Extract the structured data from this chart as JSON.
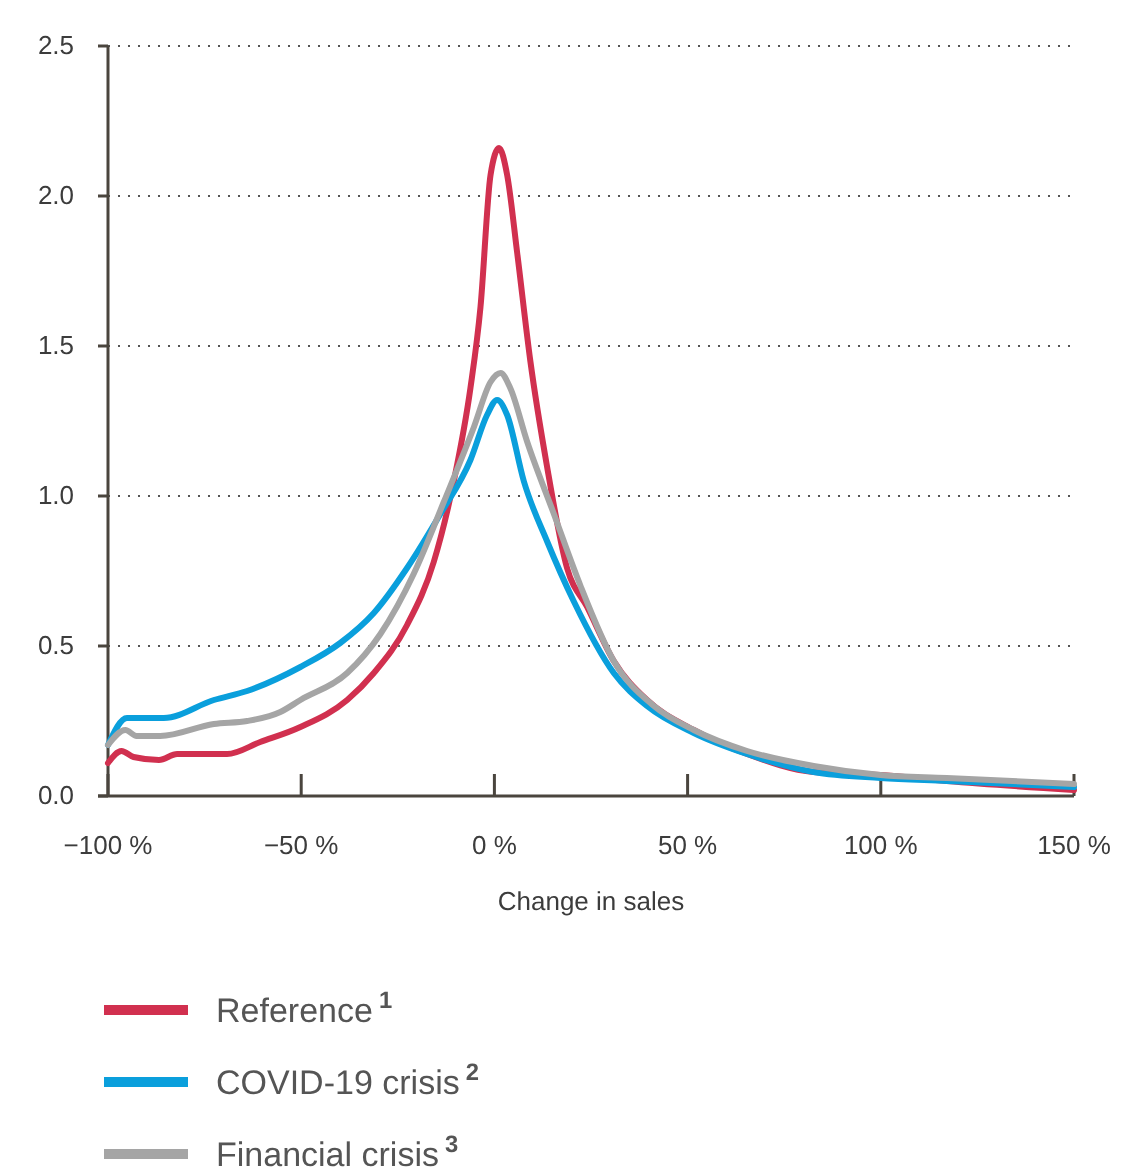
{
  "chart_data": {
    "type": "line",
    "xlabel": "Change in sales",
    "xlim": [
      -100,
      150
    ],
    "ylim": [
      0,
      2.5
    ],
    "xticks": [
      {
        "value": -100,
        "label": "−100 %"
      },
      {
        "value": -50,
        "label": "−50 %"
      },
      {
        "value": 0,
        "label": "0 %"
      },
      {
        "value": 50,
        "label": "50 %"
      },
      {
        "value": 100,
        "label": "100 %"
      },
      {
        "value": 150,
        "label": "150 %"
      }
    ],
    "yticks": [
      {
        "value": 0,
        "label": "0.0"
      },
      {
        "value": 0.5,
        "label": "0.5"
      },
      {
        "value": 1,
        "label": "1.0"
      },
      {
        "value": 1.5,
        "label": "1.5"
      },
      {
        "value": 2,
        "label": "2.0"
      },
      {
        "value": 2.5,
        "label": "2.5"
      }
    ],
    "grid": "y",
    "legend": "bottom",
    "marker": "none",
    "line_style": "solid",
    "series": [
      {
        "name": "Reference$^{1}$",
        "color": "#d1304f",
        "x": [
          -100,
          -96.5,
          -93.4,
          -86.8,
          -82.1,
          -69.2,
          -60.6,
          -50.2,
          -38.1,
          -31.2,
          -22.6,
          -15.7,
          -10.5,
          -6.2,
          -3.6,
          -1,
          1.2,
          3.3,
          5.9,
          9.3,
          13.6,
          18.8,
          24,
          30.9,
          39.5,
          51.6,
          65.4,
          82.6,
          99.9,
          117.1,
          150
        ],
        "values": [
          0.11,
          0.15,
          0.13,
          0.12,
          0.14,
          0.14,
          0.18,
          0.23,
          0.32,
          0.41,
          0.57,
          0.78,
          1.05,
          1.36,
          1.63,
          2.07,
          2.16,
          2.07,
          1.81,
          1.45,
          1.1,
          0.76,
          0.63,
          0.45,
          0.32,
          0.22,
          0.14,
          0.08,
          0.07,
          0.05,
          0.02
        ]
      },
      {
        "name": "COVID-19 crisis$^{2}$",
        "color": "#0a9fdc",
        "x": [
          -100,
          -95.1,
          -90.8,
          -85.6,
          -72.6,
          -64,
          -50.2,
          -39.9,
          -31.2,
          -22.6,
          -14,
          -6.2,
          -1.9,
          0.7,
          3.3,
          7.6,
          13.6,
          20.5,
          30.9,
          39.5,
          51.6,
          65.4,
          82.6,
          99.9,
          117.1,
          150
        ],
        "values": [
          0.17,
          0.26,
          0.26,
          0.26,
          0.32,
          0.35,
          0.43,
          0.51,
          0.61,
          0.76,
          0.94,
          1.12,
          1.27,
          1.32,
          1.27,
          1.05,
          0.85,
          0.65,
          0.41,
          0.3,
          0.21,
          0.14,
          0.08,
          0.06,
          0.05,
          0.03
        ]
      },
      {
        "name": "Financial crisis$^{3}$",
        "color": "#a5a5a5",
        "x": [
          -100,
          -95.5,
          -92.6,
          -86.5,
          -72.6,
          -64,
          -55.4,
          -50.2,
          -38.1,
          -29.5,
          -20.9,
          -13.1,
          -5.3,
          -1,
          1.6,
          4.1,
          8.5,
          15.4,
          22.3,
          30.9,
          41.3,
          51.6,
          65.4,
          82.6,
          99.9,
          117.1,
          150
        ],
        "values": [
          0.17,
          0.22,
          0.2,
          0.2,
          0.24,
          0.25,
          0.28,
          0.32,
          0.41,
          0.54,
          0.74,
          0.98,
          1.23,
          1.38,
          1.41,
          1.36,
          1.18,
          0.94,
          0.7,
          0.45,
          0.3,
          0.22,
          0.15,
          0.1,
          0.07,
          0.06,
          0.04
        ]
      }
    ]
  }
}
